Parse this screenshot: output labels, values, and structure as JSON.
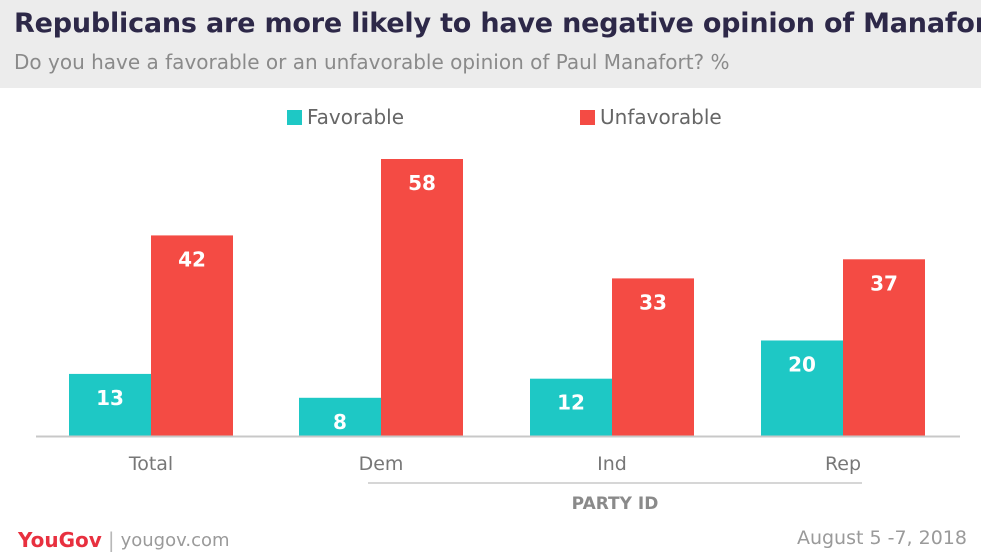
{
  "title": "Republicans are more likely to have negative opinion of Manafort",
  "subtitle": "Do you have a favorable or an unfavorable opinion of Paul Manafort? %",
  "legend": {
    "favorable": "Favorable",
    "unfavorable": "Unfavorable"
  },
  "colors": {
    "favorable": "#1ec8c5",
    "unfavorable": "#f44b44",
    "header_bg": "#ececec",
    "title": "#2d2848"
  },
  "footer": {
    "brand": "YouGov",
    "separator": "|",
    "site": "yougov.com",
    "date": "August 5 -7, 2018"
  },
  "chart_data": {
    "type": "bar",
    "categories": [
      "Total",
      "Dem",
      "Ind",
      "Rep"
    ],
    "series": [
      {
        "name": "Favorable",
        "values": [
          13,
          8,
          12,
          20
        ]
      },
      {
        "name": "Unfavorable",
        "values": [
          42,
          58,
          33,
          37
        ]
      }
    ],
    "group_label": "PARTY ID",
    "grouped_categories": [
      "Dem",
      "Ind",
      "Rep"
    ],
    "ylim": [
      0,
      60
    ],
    "grid": false,
    "legend_position": "top"
  }
}
